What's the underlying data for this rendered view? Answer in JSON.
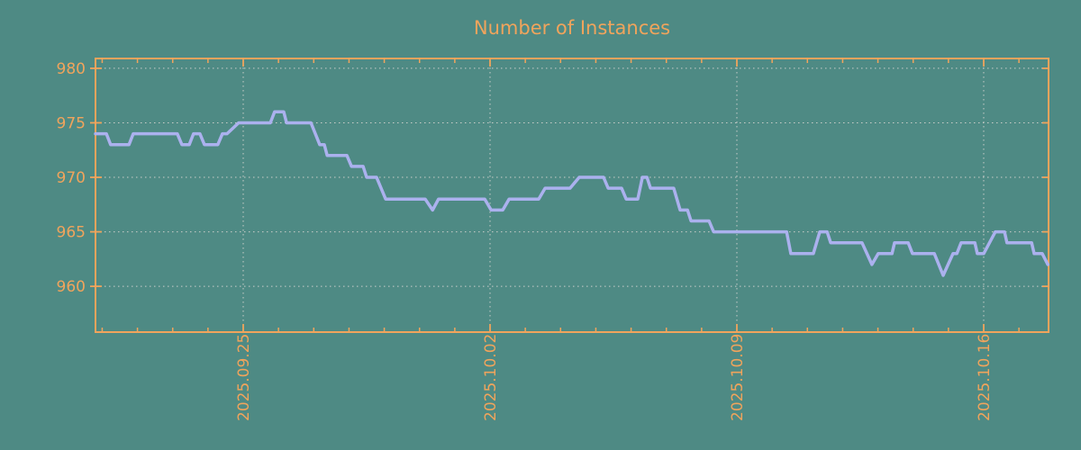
{
  "title": "Number of Instances",
  "colors": {
    "background": "#4e8a84",
    "accent_orange": "#f0a45c",
    "line_lavender": "#abb1ee",
    "grid_gray": "#c9cdc9"
  },
  "chart_data": {
    "type": "line",
    "title": "Number of Instances",
    "xlabel": "",
    "ylabel": "",
    "legend": "none",
    "grid": true,
    "x_axis": {
      "unit": "days relative to 2025-09-25",
      "xlim": [
        -4.19,
        22.84
      ],
      "major_ticks": [
        {
          "offset_days": 0,
          "label": "2025.09.25"
        },
        {
          "offset_days": 7,
          "label": "2025.10.02"
        },
        {
          "offset_days": 14,
          "label": "2025.10.09"
        },
        {
          "offset_days": 21,
          "label": "2025.10.16"
        }
      ],
      "minor_tick_step_days": 1
    },
    "y_axis": {
      "ylim": [
        955.8,
        980.9
      ],
      "ticks": [
        960,
        965,
        970,
        975,
        980
      ]
    },
    "series": [
      {
        "name": "Number of Instances",
        "points": [
          [
            -4.19,
            974
          ],
          [
            -3.88,
            974
          ],
          [
            -3.76,
            973
          ],
          [
            -3.24,
            973
          ],
          [
            -3.12,
            974
          ],
          [
            -1.87,
            974
          ],
          [
            -1.74,
            973
          ],
          [
            -1.53,
            973
          ],
          [
            -1.41,
            974
          ],
          [
            -1.23,
            974
          ],
          [
            -1.1,
            973
          ],
          [
            -0.72,
            973
          ],
          [
            -0.59,
            974
          ],
          [
            -0.46,
            974
          ],
          [
            -0.13,
            975
          ],
          [
            0.77,
            975
          ],
          [
            0.89,
            976
          ],
          [
            1.15,
            976
          ],
          [
            1.23,
            975
          ],
          [
            1.92,
            975
          ],
          [
            2.17,
            973
          ],
          [
            2.3,
            973
          ],
          [
            2.38,
            972
          ],
          [
            2.94,
            972
          ],
          [
            3.07,
            971
          ],
          [
            3.4,
            971
          ],
          [
            3.5,
            970
          ],
          [
            3.78,
            970
          ],
          [
            4.04,
            968
          ],
          [
            5.16,
            968
          ],
          [
            5.37,
            967
          ],
          [
            5.54,
            968
          ],
          [
            6.85,
            968
          ],
          [
            7.03,
            967
          ],
          [
            7.36,
            967
          ],
          [
            7.54,
            968
          ],
          [
            8.38,
            968
          ],
          [
            8.56,
            969
          ],
          [
            9.27,
            969
          ],
          [
            9.53,
            970
          ],
          [
            10.22,
            970
          ],
          [
            10.35,
            969
          ],
          [
            10.73,
            969
          ],
          [
            10.86,
            968
          ],
          [
            11.19,
            968
          ],
          [
            11.32,
            970
          ],
          [
            11.45,
            970
          ],
          [
            11.55,
            969
          ],
          [
            12.21,
            969
          ],
          [
            12.39,
            967
          ],
          [
            12.6,
            967
          ],
          [
            12.7,
            966
          ],
          [
            13.21,
            966
          ],
          [
            13.34,
            965
          ],
          [
            15.41,
            965
          ],
          [
            15.53,
            963
          ],
          [
            16.17,
            963
          ],
          [
            16.35,
            965
          ],
          [
            16.56,
            965
          ],
          [
            16.66,
            964
          ],
          [
            17.55,
            964
          ],
          [
            17.83,
            962
          ],
          [
            18.01,
            963
          ],
          [
            18.4,
            963
          ],
          [
            18.47,
            964
          ],
          [
            18.86,
            964
          ],
          [
            18.98,
            963
          ],
          [
            19.6,
            963
          ],
          [
            19.85,
            961
          ],
          [
            20.13,
            963
          ],
          [
            20.24,
            963
          ],
          [
            20.36,
            964
          ],
          [
            20.75,
            964
          ],
          [
            20.82,
            963
          ],
          [
            21.0,
            963
          ],
          [
            21.33,
            965
          ],
          [
            21.59,
            965
          ],
          [
            21.66,
            964
          ],
          [
            22.36,
            964
          ],
          [
            22.43,
            963
          ],
          [
            22.66,
            963
          ],
          [
            22.82,
            962
          ]
        ]
      }
    ]
  }
}
